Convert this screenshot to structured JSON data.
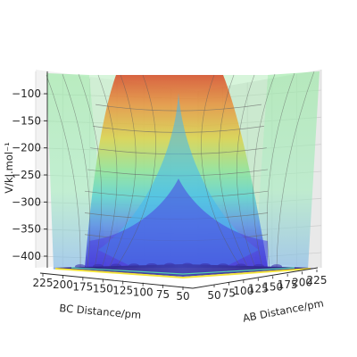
{
  "chart_data": {
    "type": "surface3d",
    "xlabel": "AB Distance/pm",
    "ylabel": "BC Distance/pm",
    "zlabel": "V/kJ.mol⁻¹",
    "x_ticks": [
      50,
      75,
      100,
      125,
      150,
      175,
      200,
      225
    ],
    "y_ticks": [
      225,
      200,
      175,
      150,
      125,
      100,
      75,
      50
    ],
    "z_ticks": [
      -100,
      -150,
      -200,
      -250,
      -300,
      -350,
      -400
    ],
    "zlim": [
      -435,
      -80
    ],
    "colormap": "jet",
    "surface_opacity": 0.35,
    "grid": true,
    "surface_profile": [
      {
        "distance_pm": 50,
        "V": -80
      },
      {
        "distance_pm": 60,
        "V": -230
      },
      {
        "distance_pm": 70,
        "V": -330
      },
      {
        "distance_pm": 80,
        "V": -400
      },
      {
        "distance_pm": 90,
        "V": -430
      },
      {
        "distance_pm": 110,
        "V": -420
      },
      {
        "distance_pm": 140,
        "V": -390
      },
      {
        "distance_pm": 175,
        "V": -370
      },
      {
        "distance_pm": 225,
        "V": -360
      }
    ]
  }
}
